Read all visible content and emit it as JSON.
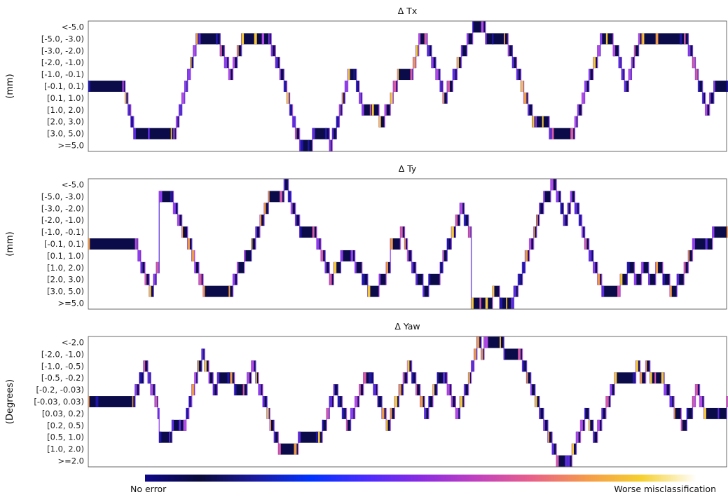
{
  "chart_data": [
    {
      "type": "heatmap",
      "title": "Δ Tx",
      "ylabel": "(mm)",
      "bins": [
        "<-5.0",
        "[-5.0, -3.0)",
        "[-3.0, -2.0)",
        "[-2.0, -1.0)",
        "[-1.0, -0.1)",
        "[-0.1, 0.1)",
        "[0.1, 1.0)",
        "[1.0, 2.0)",
        "[2.0, 3.0)",
        "[3.0, 5.0)",
        ">=5.0"
      ],
      "x_range": [
        0,
        900
      ],
      "grid": false,
      "path": [
        [
          0,
          5
        ],
        [
          48,
          5
        ],
        [
          52,
          6
        ],
        [
          56,
          7
        ],
        [
          60,
          8
        ],
        [
          64,
          9
        ],
        [
          84,
          9
        ],
        [
          120,
          9
        ],
        [
          124,
          8
        ],
        [
          128,
          7
        ],
        [
          132,
          6
        ],
        [
          136,
          5
        ],
        [
          140,
          4
        ],
        [
          144,
          3
        ],
        [
          148,
          2
        ],
        [
          152,
          1
        ],
        [
          180,
          1
        ],
        [
          186,
          2
        ],
        [
          192,
          3
        ],
        [
          198,
          4
        ],
        [
          204,
          3
        ],
        [
          210,
          2
        ],
        [
          216,
          1
        ],
        [
          234,
          1
        ],
        [
          254,
          1
        ],
        [
          258,
          2
        ],
        [
          264,
          3
        ],
        [
          270,
          4
        ],
        [
          276,
          5
        ],
        [
          280,
          6
        ],
        [
          284,
          7
        ],
        [
          288,
          8
        ],
        [
          292,
          9
        ],
        [
          298,
          10
        ],
        [
          310,
          10
        ],
        [
          316,
          9
        ],
        [
          334,
          9
        ],
        [
          340,
          10
        ],
        [
          344,
          9
        ],
        [
          350,
          8
        ],
        [
          354,
          7
        ],
        [
          358,
          6
        ],
        [
          362,
          5
        ],
        [
          366,
          4
        ],
        [
          374,
          4
        ],
        [
          378,
          5
        ],
        [
          382,
          6
        ],
        [
          386,
          7
        ],
        [
          400,
          7
        ],
        [
          410,
          8
        ],
        [
          418,
          7
        ],
        [
          426,
          6
        ],
        [
          430,
          5
        ],
        [
          436,
          4
        ],
        [
          454,
          4
        ],
        [
          458,
          3
        ],
        [
          462,
          2
        ],
        [
          466,
          1
        ],
        [
          474,
          1
        ],
        [
          478,
          2
        ],
        [
          484,
          3
        ],
        [
          490,
          4
        ],
        [
          496,
          5
        ],
        [
          500,
          6
        ],
        [
          506,
          5
        ],
        [
          514,
          4
        ],
        [
          520,
          3
        ],
        [
          526,
          2
        ],
        [
          534,
          1
        ],
        [
          542,
          0
        ],
        [
          554,
          0
        ],
        [
          560,
          1
        ],
        [
          586,
          1
        ],
        [
          592,
          2
        ],
        [
          598,
          3
        ],
        [
          604,
          4
        ],
        [
          610,
          5
        ],
        [
          614,
          6
        ],
        [
          620,
          7
        ],
        [
          626,
          8
        ],
        [
          640,
          8
        ],
        [
          650,
          9
        ],
        [
          680,
          9
        ],
        [
          686,
          8
        ],
        [
          690,
          7
        ],
        [
          696,
          6
        ],
        [
          700,
          5
        ],
        [
          706,
          4
        ],
        [
          712,
          3
        ],
        [
          718,
          2
        ],
        [
          722,
          1
        ],
        [
          730,
          1
        ],
        [
          740,
          2
        ],
        [
          748,
          3
        ],
        [
          752,
          4
        ],
        [
          756,
          5
        ],
        [
          762,
          4
        ],
        [
          766,
          3
        ],
        [
          770,
          2
        ],
        [
          776,
          1
        ],
        [
          780,
          1
        ],
        [
          800,
          1
        ],
        [
          840,
          1
        ],
        [
          846,
          2
        ],
        [
          852,
          3
        ],
        [
          856,
          4
        ],
        [
          860,
          5
        ],
        [
          866,
          6
        ],
        [
          870,
          7
        ],
        [
          876,
          6
        ],
        [
          882,
          5
        ],
        [
          900,
          5
        ]
      ],
      "colorbar": {
        "min_label": "No error",
        "max_label": "Worse misclassification",
        "stops": [
          "#0d0887",
          "#0a0a3a",
          "#1a1aa0",
          "#0033ff",
          "#4a2cff",
          "#8a2be2",
          "#c040c0",
          "#e8608a",
          "#f59a4a",
          "#f5d030",
          "#ffffff"
        ]
      }
    },
    {
      "type": "heatmap",
      "title": "Δ Ty",
      "ylabel": "(mm)",
      "bins": [
        "<-5.0",
        "[-5.0, -3.0)",
        "[-3.0, -2.0)",
        "[-2.0, -1.0)",
        "[-1.0, -0.1)",
        "[-0.1, 0.1)",
        "[0.1, 1.0)",
        "[1.0, 2.0)",
        "[2.0, 3.0)",
        "[3.0, 5.0)",
        ">=5.0"
      ],
      "x_range": [
        0,
        900
      ],
      "grid": false,
      "path": [
        [
          0,
          5
        ],
        [
          66,
          5
        ],
        [
          70,
          6
        ],
        [
          74,
          7
        ],
        [
          80,
          8
        ],
        [
          86,
          9
        ],
        [
          92,
          8
        ],
        [
          96,
          7
        ],
        [
          100,
          1
        ],
        [
          116,
          1
        ],
        [
          120,
          2
        ],
        [
          126,
          3
        ],
        [
          132,
          4
        ],
        [
          140,
          5
        ],
        [
          146,
          6
        ],
        [
          150,
          7
        ],
        [
          156,
          8
        ],
        [
          162,
          9
        ],
        [
          198,
          9
        ],
        [
          204,
          8
        ],
        [
          210,
          7
        ],
        [
          220,
          6
        ],
        [
          230,
          5
        ],
        [
          236,
          4
        ],
        [
          242,
          3
        ],
        [
          248,
          2
        ],
        [
          254,
          1
        ],
        [
          270,
          1
        ],
        [
          276,
          0
        ],
        [
          282,
          1
        ],
        [
          286,
          2
        ],
        [
          292,
          3
        ],
        [
          298,
          4
        ],
        [
          316,
          4
        ],
        [
          322,
          5
        ],
        [
          328,
          6
        ],
        [
          334,
          7
        ],
        [
          340,
          8
        ],
        [
          346,
          7
        ],
        [
          356,
          6
        ],
        [
          370,
          6
        ],
        [
          376,
          7
        ],
        [
          386,
          8
        ],
        [
          394,
          9
        ],
        [
          410,
          8
        ],
        [
          420,
          7
        ],
        [
          426,
          5
        ],
        [
          440,
          4
        ],
        [
          446,
          5
        ],
        [
          450,
          6
        ],
        [
          456,
          7
        ],
        [
          462,
          8
        ],
        [
          472,
          9
        ],
        [
          480,
          8
        ],
        [
          496,
          7
        ],
        [
          500,
          6
        ],
        [
          506,
          5
        ],
        [
          512,
          4
        ],
        [
          518,
          3
        ],
        [
          524,
          2
        ],
        [
          530,
          3
        ],
        [
          536,
          4
        ],
        [
          540,
          10
        ],
        [
          560,
          10
        ],
        [
          570,
          9
        ],
        [
          580,
          10
        ],
        [
          596,
          10
        ],
        [
          600,
          9
        ],
        [
          606,
          8
        ],
        [
          612,
          7
        ],
        [
          616,
          6
        ],
        [
          622,
          5
        ],
        [
          628,
          4
        ],
        [
          632,
          3
        ],
        [
          636,
          2
        ],
        [
          642,
          1
        ],
        [
          652,
          0
        ],
        [
          660,
          1
        ],
        [
          666,
          2
        ],
        [
          670,
          3
        ],
        [
          676,
          2
        ],
        [
          680,
          1
        ],
        [
          686,
          2
        ],
        [
          692,
          3
        ],
        [
          696,
          4
        ],
        [
          700,
          5
        ],
        [
          706,
          6
        ],
        [
          712,
          7
        ],
        [
          718,
          8
        ],
        [
          724,
          9
        ],
        [
          746,
          9
        ],
        [
          750,
          8
        ],
        [
          760,
          7
        ],
        [
          770,
          8
        ],
        [
          780,
          7
        ],
        [
          790,
          8
        ],
        [
          800,
          7
        ],
        [
          810,
          8
        ],
        [
          820,
          9
        ],
        [
          830,
          8
        ],
        [
          840,
          7
        ],
        [
          846,
          6
        ],
        [
          852,
          5
        ],
        [
          870,
          5
        ],
        [
          880,
          4
        ],
        [
          900,
          4
        ]
      ]
    },
    {
      "type": "heatmap",
      "title": "Δ Yaw",
      "ylabel": "(Degrees)",
      "bins": [
        "<-2.0",
        "[-2.0, -1.0)",
        "[-1.0, -0.5)",
        "[-0.5, -0.2)",
        "[-0.2, -0.03)",
        "[-0.03, 0.03)",
        "[0.03, 0.2)",
        "[0.2, 0.5)",
        "[0.5, 1.0)",
        "[1.0, 2.0)",
        ">=2.0"
      ],
      "x_range": [
        0,
        900
      ],
      "grid": false,
      "path": [
        [
          0,
          5
        ],
        [
          62,
          5
        ],
        [
          66,
          4
        ],
        [
          72,
          3
        ],
        [
          78,
          2
        ],
        [
          84,
          3
        ],
        [
          88,
          4
        ],
        [
          94,
          5
        ],
        [
          98,
          6
        ],
        [
          100,
          8
        ],
        [
          114,
          8
        ],
        [
          118,
          7
        ],
        [
          134,
          7
        ],
        [
          138,
          6
        ],
        [
          142,
          5
        ],
        [
          146,
          4
        ],
        [
          150,
          3
        ],
        [
          154,
          2
        ],
        [
          160,
          1
        ],
        [
          164,
          2
        ],
        [
          170,
          3
        ],
        [
          176,
          4
        ],
        [
          182,
          3
        ],
        [
          200,
          3
        ],
        [
          206,
          4
        ],
        [
          218,
          4
        ],
        [
          224,
          3
        ],
        [
          230,
          2
        ],
        [
          236,
          3
        ],
        [
          240,
          4
        ],
        [
          246,
          5
        ],
        [
          252,
          6
        ],
        [
          256,
          7
        ],
        [
          262,
          8
        ],
        [
          268,
          9
        ],
        [
          290,
          9
        ],
        [
          296,
          8
        ],
        [
          324,
          8
        ],
        [
          330,
          7
        ],
        [
          336,
          6
        ],
        [
          340,
          5
        ],
        [
          346,
          4
        ],
        [
          352,
          5
        ],
        [
          358,
          6
        ],
        [
          364,
          7
        ],
        [
          370,
          6
        ],
        [
          376,
          5
        ],
        [
          382,
          4
        ],
        [
          388,
          3
        ],
        [
          396,
          3
        ],
        [
          402,
          4
        ],
        [
          408,
          5
        ],
        [
          414,
          6
        ],
        [
          420,
          7
        ],
        [
          426,
          6
        ],
        [
          432,
          5
        ],
        [
          438,
          4
        ],
        [
          444,
          3
        ],
        [
          450,
          2
        ],
        [
          456,
          3
        ],
        [
          462,
          4
        ],
        [
          468,
          5
        ],
        [
          474,
          6
        ],
        [
          480,
          5
        ],
        [
          486,
          4
        ],
        [
          492,
          3
        ],
        [
          500,
          3
        ],
        [
          506,
          4
        ],
        [
          512,
          5
        ],
        [
          518,
          6
        ],
        [
          524,
          5
        ],
        [
          530,
          4
        ],
        [
          536,
          3
        ],
        [
          540,
          2
        ],
        [
          544,
          1
        ],
        [
          548,
          0
        ],
        [
          554,
          1
        ],
        [
          558,
          0
        ],
        [
          560,
          0
        ],
        [
          580,
          0
        ],
        [
          586,
          1
        ],
        [
          606,
          1
        ],
        [
          612,
          2
        ],
        [
          618,
          3
        ],
        [
          624,
          4
        ],
        [
          630,
          5
        ],
        [
          636,
          6
        ],
        [
          642,
          7
        ],
        [
          648,
          8
        ],
        [
          654,
          9
        ],
        [
          660,
          10
        ],
        [
          676,
          10
        ],
        [
          682,
          9
        ],
        [
          688,
          8
        ],
        [
          694,
          7
        ],
        [
          700,
          6
        ],
        [
          706,
          7
        ],
        [
          712,
          8
        ],
        [
          718,
          7
        ],
        [
          724,
          6
        ],
        [
          730,
          5
        ],
        [
          736,
          4
        ],
        [
          742,
          3
        ],
        [
          768,
          3
        ],
        [
          772,
          2
        ],
        [
          778,
          3
        ],
        [
          786,
          2
        ],
        [
          792,
          3
        ],
        [
          808,
          3
        ],
        [
          812,
          4
        ],
        [
          820,
          5
        ],
        [
          826,
          6
        ],
        [
          836,
          7
        ],
        [
          844,
          6
        ],
        [
          852,
          5
        ],
        [
          856,
          4
        ],
        [
          862,
          5
        ],
        [
          868,
          6
        ],
        [
          900,
          5
        ]
      ]
    }
  ]
}
